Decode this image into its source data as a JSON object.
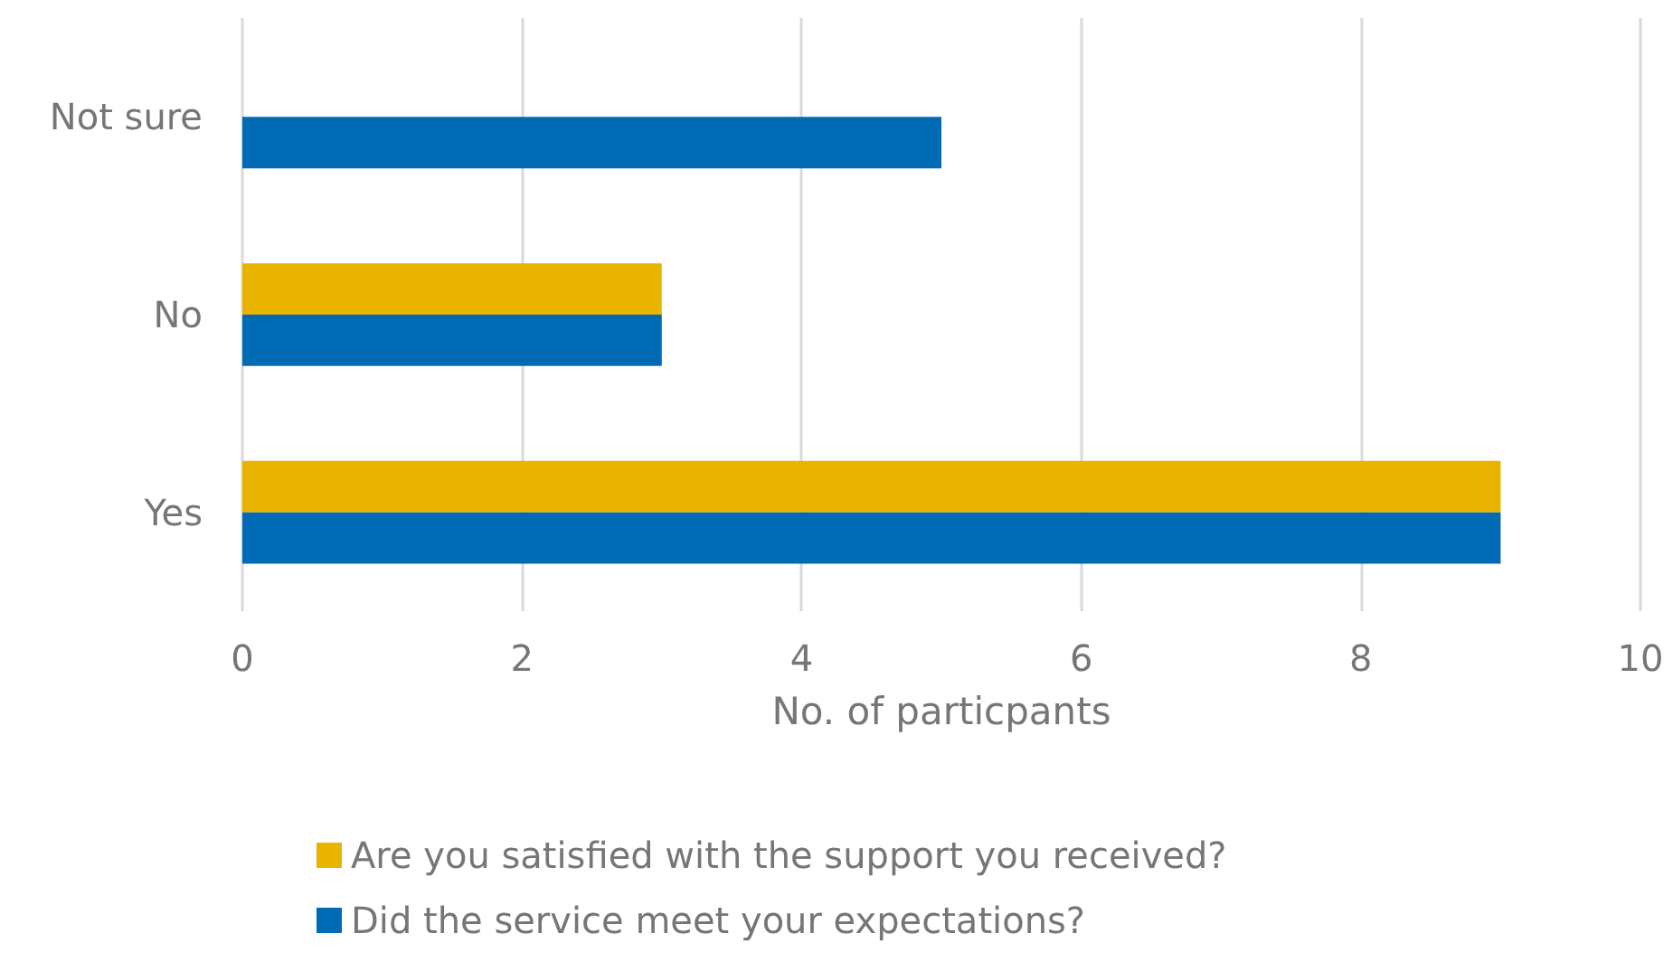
{
  "chart_data": {
    "type": "bar",
    "orientation": "horizontal",
    "categories": [
      "Not sure",
      "No",
      "Yes"
    ],
    "series": [
      {
        "name": "Are you satisfied with the support you received?",
        "color": "#e8b400",
        "values": [
          0,
          3,
          9
        ]
      },
      {
        "name": "Did the service meet your expectations?",
        "color": "#006ab4",
        "values": [
          5,
          3,
          9
        ]
      }
    ],
    "xlabel": "No. of particpants",
    "xlim": [
      0,
      10
    ],
    "xticks": [
      0,
      2,
      4,
      6,
      8,
      10
    ],
    "grid": "x",
    "legend": "bottom"
  }
}
